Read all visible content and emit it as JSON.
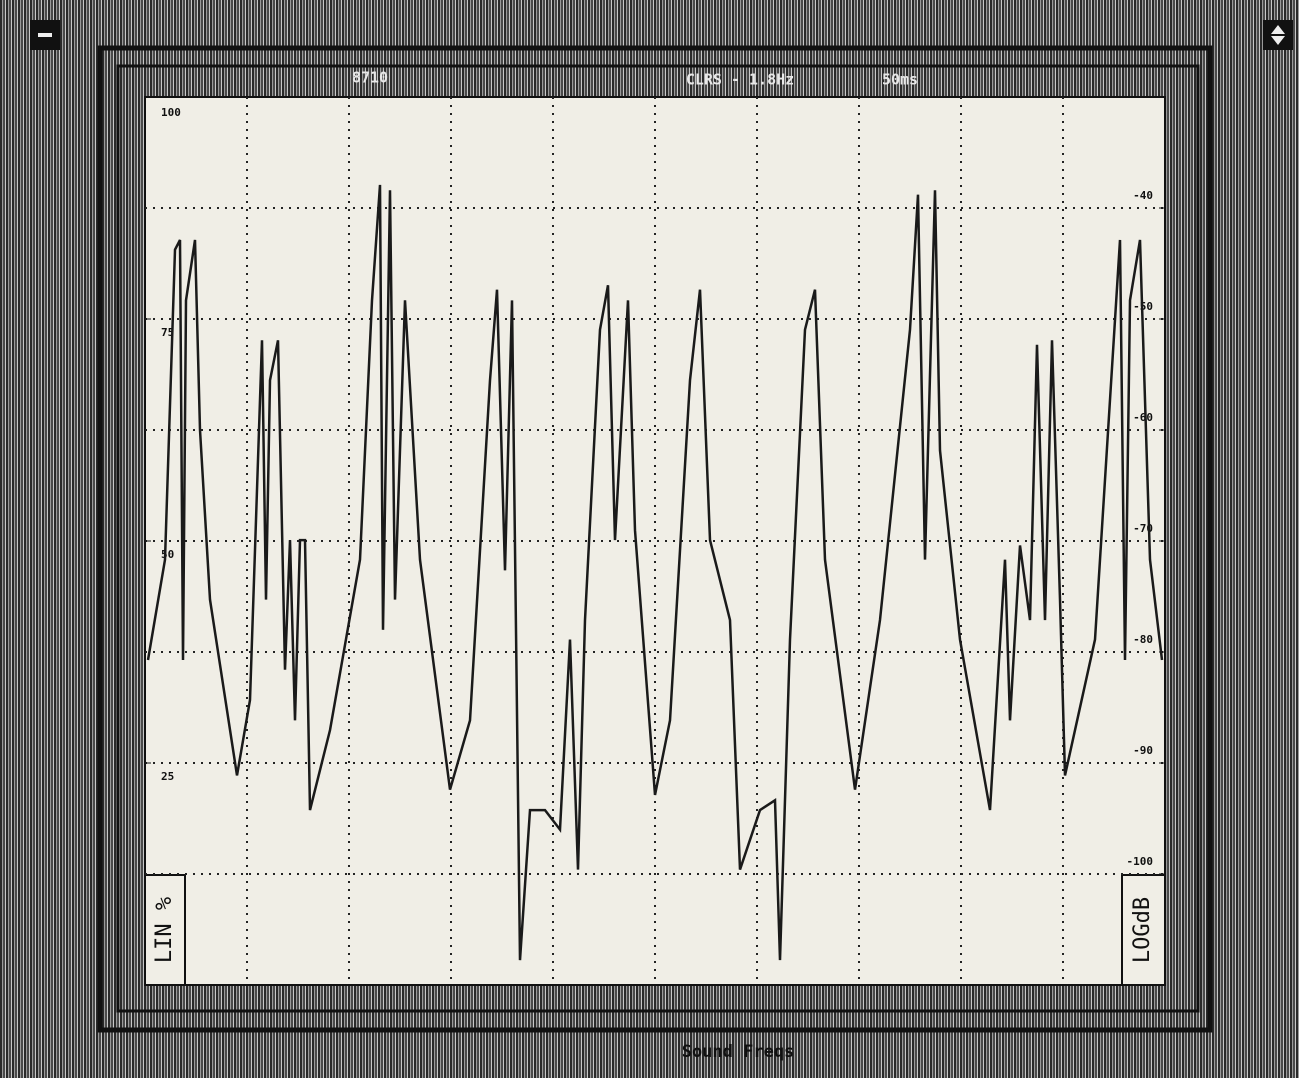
{
  "chart_data": {
    "type": "line",
    "header": [
      "8710",
      "CLRS - 1.8Hz",
      "50ms"
    ],
    "x_label": "Sound Freqs",
    "y_label": "LIN %",
    "y2_label": "LOGdB",
    "xlim": [
      0,
      1020
    ],
    "ylim": [
      0,
      100
    ],
    "yticks": [
      25,
      50,
      75,
      100
    ],
    "y2lim": [
      -110,
      -30
    ],
    "y2ticks": [
      -100,
      -90,
      -80,
      -70,
      -60,
      -50,
      -40
    ],
    "grid": true,
    "grid_divisions": [
      10,
      8
    ],
    "color": "#1a1a1a",
    "x": [
      3,
      20,
      30,
      35,
      38,
      41,
      50,
      55,
      65,
      92,
      105,
      115,
      117,
      121,
      125,
      133,
      140,
      145,
      150,
      155,
      160,
      165,
      185,
      215,
      227,
      235,
      238,
      245,
      250,
      260,
      275,
      305,
      325,
      345,
      352,
      360,
      367,
      375,
      385,
      400,
      415,
      425,
      433,
      440,
      455,
      463,
      470,
      483,
      490,
      510,
      525,
      545,
      555,
      565,
      585,
      595,
      615,
      630,
      635,
      645,
      660,
      670,
      680,
      710,
      735,
      765,
      773,
      780,
      790,
      795,
      815,
      845,
      860,
      865,
      875,
      885,
      892,
      900,
      907,
      915,
      920,
      950,
      975,
      980,
      985,
      995,
      1005,
      1017
    ],
    "values": [
      36.6,
      47.9,
      82.8,
      83.9,
      36.6,
      77.1,
      83.9,
      62.5,
      43.4,
      23.6,
      32.1,
      65.9,
      72.6,
      43.4,
      68.1,
      72.6,
      35.5,
      50.1,
      29.8,
      50.1,
      50.1,
      19.7,
      28.7,
      47.9,
      77.1,
      90.1,
      40.0,
      89.5,
      43.4,
      77.1,
      47.9,
      22.0,
      29.8,
      68.1,
      78.3,
      46.7,
      77.1,
      2.8,
      19.7,
      19.7,
      17.5,
      38.9,
      13.0,
      41.1,
      73.8,
      78.8,
      50.1,
      77.1,
      51.2,
      21.4,
      29.8,
      68.1,
      78.3,
      50.1,
      41.1,
      13.0,
      19.7,
      20.8,
      2.8,
      38.9,
      73.8,
      78.3,
      47.9,
      22.0,
      41.1,
      73.8,
      89.0,
      47.9,
      89.5,
      60.2,
      38.9,
      19.7,
      47.9,
      29.8,
      49.5,
      41.1,
      72.1,
      41.1,
      72.6,
      43.4,
      23.6,
      38.9,
      83.9,
      36.6,
      77.1,
      83.9,
      47.9,
      36.6
    ]
  }
}
